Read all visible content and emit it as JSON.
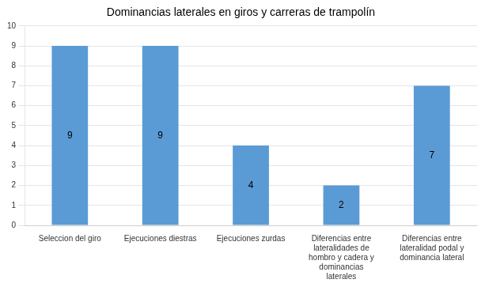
{
  "chart_data": {
    "type": "bar",
    "title": "Dominancias laterales en giros y carreras de trampolín",
    "categories": [
      "Seleccion del giro",
      "Ejecuciones diestras",
      "Ejecuciones zurdas",
      "Diferencias entre\nlateralidades de\nhombro y cadera y\ndominancias\nlaterales",
      "Diferencias entre\nlateralidad podal y\ndominancia lateral"
    ],
    "values": [
      9,
      9,
      4,
      2,
      7
    ],
    "color": "#5B9BD5",
    "ylim": [
      0,
      10
    ],
    "yticks": [
      0,
      1,
      2,
      3,
      4,
      5,
      6,
      7,
      8,
      9,
      10
    ],
    "grid": true,
    "data_labels": true
  }
}
